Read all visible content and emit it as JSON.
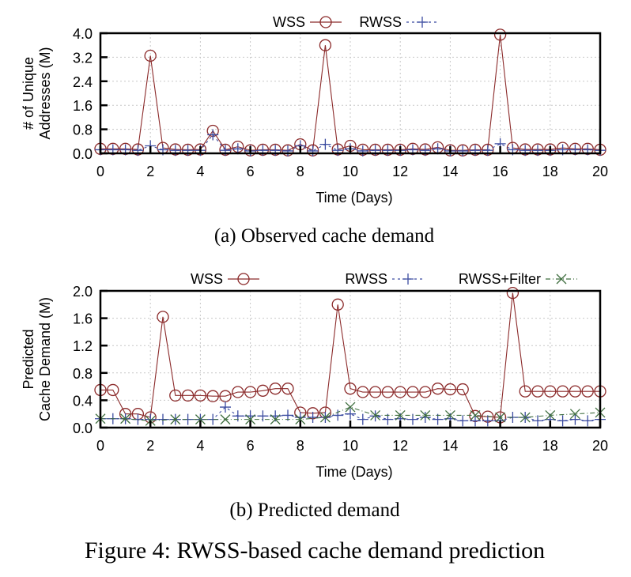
{
  "figure_caption": "Figure 4: RWSS-based cache demand prediction",
  "chart_data": [
    {
      "id": "a",
      "type": "line",
      "caption": "(a) Observed cache demand",
      "title": "",
      "xlabel": "Time (Days)",
      "ylabel_lines": [
        "# of Unique",
        "Addresses (M)"
      ],
      "xlim": [
        0,
        20
      ],
      "ylim": [
        0,
        4.0
      ],
      "xticks": [
        "0",
        "2",
        "4",
        "6",
        "8",
        "10",
        "12",
        "14",
        "16",
        "18",
        "20"
      ],
      "yticks": [
        "0.0",
        "0.8",
        "1.6",
        "2.4",
        "3.2",
        "4.0"
      ],
      "grid": true,
      "legend": "top-outside-center",
      "x": [
        0,
        0.5,
        1,
        1.5,
        2,
        2.5,
        3,
        3.5,
        4,
        4.5,
        5,
        5.5,
        6,
        6.5,
        7,
        7.5,
        8,
        8.5,
        9,
        9.5,
        10,
        10.5,
        11,
        11.5,
        12,
        12.5,
        13,
        13.5,
        14,
        14.5,
        15,
        15.5,
        16,
        16.5,
        17,
        17.5,
        18,
        18.5,
        19,
        19.5,
        20
      ],
      "series": [
        {
          "name": "WSS",
          "color": "#8b2a2a",
          "marker": "circle",
          "line": "solid",
          "values": [
            0.15,
            0.15,
            0.15,
            0.13,
            3.25,
            0.18,
            0.13,
            0.12,
            0.13,
            0.75,
            0.12,
            0.22,
            0.1,
            0.12,
            0.12,
            0.1,
            0.3,
            0.1,
            3.6,
            0.13,
            0.25,
            0.12,
            0.12,
            0.12,
            0.12,
            0.15,
            0.13,
            0.2,
            0.1,
            0.1,
            0.12,
            0.12,
            3.95,
            0.18,
            0.13,
            0.13,
            0.13,
            0.18,
            0.15,
            0.15,
            0.12
          ]
        },
        {
          "name": "RWSS",
          "color": "#3b4ba0",
          "marker": "plus",
          "line": "dashed",
          "values": [
            0.12,
            0.12,
            0.12,
            0.1,
            0.25,
            0.12,
            0.1,
            0.1,
            0.1,
            0.62,
            0.1,
            0.15,
            0.08,
            0.1,
            0.1,
            0.08,
            0.25,
            0.08,
            0.3,
            0.1,
            0.15,
            0.08,
            0.1,
            0.1,
            0.1,
            0.12,
            0.1,
            0.15,
            0.08,
            0.08,
            0.1,
            0.1,
            0.32,
            0.12,
            0.1,
            0.1,
            0.1,
            0.12,
            0.12,
            0.12,
            0.1
          ]
        }
      ]
    },
    {
      "id": "b",
      "type": "line",
      "caption": "(b) Predicted demand",
      "title": "",
      "xlabel": "Time (Days)",
      "ylabel_lines": [
        "Predicted",
        "Cache Demand (M)"
      ],
      "xlim": [
        0,
        20
      ],
      "ylim": [
        0,
        2.0
      ],
      "xticks": [
        "0",
        "2",
        "4",
        "6",
        "8",
        "10",
        "12",
        "14",
        "16",
        "18",
        "20"
      ],
      "yticks": [
        "0.0",
        "0.4",
        "0.8",
        "1.2",
        "1.6",
        "2.0"
      ],
      "grid": true,
      "legend": "top-outside-spread",
      "x": [
        0,
        0.5,
        1,
        1.5,
        2,
        2.5,
        3,
        3.5,
        4,
        4.5,
        5,
        5.5,
        6,
        6.5,
        7,
        7.5,
        8,
        8.5,
        9,
        9.5,
        10,
        10.5,
        11,
        11.5,
        12,
        12.5,
        13,
        13.5,
        14,
        14.5,
        15,
        15.5,
        16,
        16.5,
        17,
        17.5,
        18,
        18.5,
        19,
        19.5,
        20
      ],
      "series": [
        {
          "name": "WSS",
          "color": "#8b2a2a",
          "marker": "circle",
          "line": "solid",
          "values": [
            0.55,
            0.55,
            0.2,
            0.2,
            0.15,
            1.62,
            0.47,
            0.47,
            0.47,
            0.46,
            0.46,
            0.52,
            0.52,
            0.54,
            0.57,
            0.57,
            0.22,
            0.21,
            0.22,
            1.8,
            0.57,
            0.52,
            0.52,
            0.52,
            0.52,
            0.52,
            0.52,
            0.57,
            0.56,
            0.56,
            0.17,
            0.16,
            0.15,
            1.97,
            0.53,
            0.53,
            0.53,
            0.53,
            0.53,
            0.53,
            0.53
          ]
        },
        {
          "name": "RWSS",
          "color": "#3b4ba0",
          "marker": "plus",
          "line": "dashed",
          "values": [
            0.13,
            0.13,
            0.13,
            0.12,
            0.12,
            0.12,
            0.12,
            0.12,
            0.12,
            0.12,
            0.3,
            0.17,
            0.17,
            0.17,
            0.17,
            0.18,
            0.15,
            0.15,
            0.15,
            0.18,
            0.2,
            0.12,
            0.17,
            0.12,
            0.13,
            0.12,
            0.15,
            0.12,
            0.13,
            0.1,
            0.1,
            0.1,
            0.1,
            0.15,
            0.15,
            0.1,
            0.12,
            0.1,
            0.12,
            0.1,
            0.12
          ]
        },
        {
          "name": "RWSS+Filter",
          "color": "#3f6e3f",
          "marker": "x",
          "line": "dashdot",
          "values": [
            0.13,
            null,
            0.13,
            null,
            0.1,
            null,
            0.12,
            null,
            0.12,
            null,
            0.12,
            null,
            0.12,
            null,
            0.12,
            null,
            0.12,
            null,
            0.15,
            null,
            0.3,
            null,
            0.18,
            null,
            0.18,
            null,
            0.18,
            null,
            0.18,
            null,
            0.18,
            null,
            0.15,
            null,
            0.15,
            null,
            0.18,
            null,
            0.2,
            null,
            0.22
          ]
        }
      ]
    }
  ]
}
